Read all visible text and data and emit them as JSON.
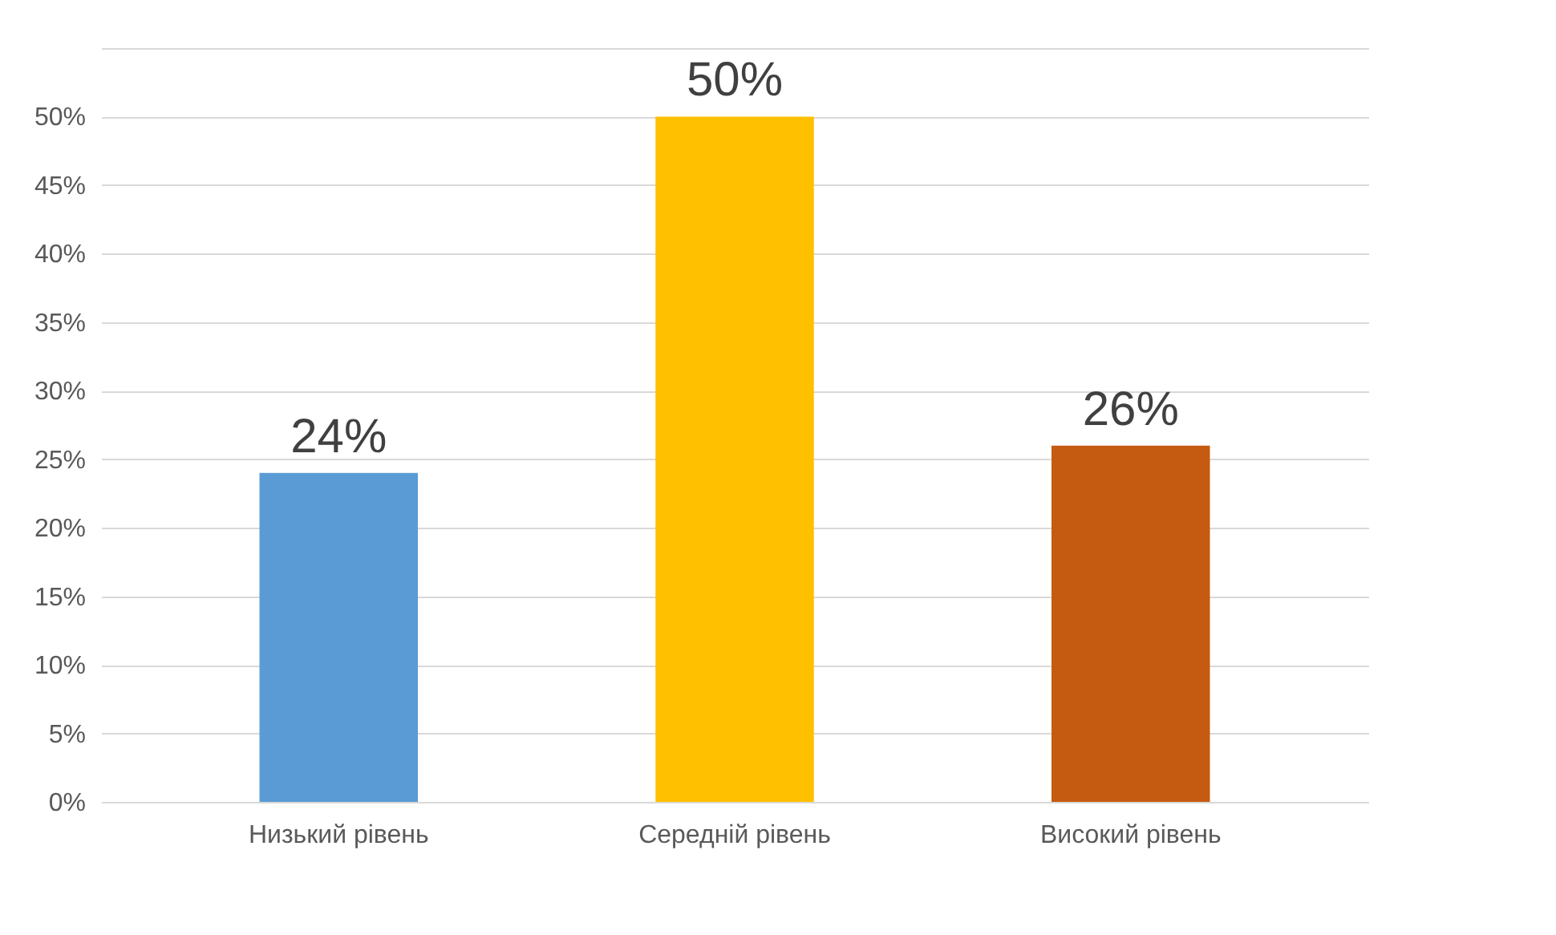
{
  "chart_data": {
    "type": "bar",
    "categories": [
      "Низький рівень",
      "Середній рівень",
      "Високий рівень"
    ],
    "values": [
      24,
      50,
      26
    ],
    "colors": [
      "#5b9bd5",
      "#ffc000",
      "#c55a11"
    ],
    "value_labels": [
      "24%",
      "50%",
      "26%"
    ],
    "ylim": [
      0,
      55
    ],
    "yticks": [
      {
        "value": 0,
        "label": "0%"
      },
      {
        "value": 5,
        "label": "5%"
      },
      {
        "value": 10,
        "label": "10%"
      },
      {
        "value": 15,
        "label": "15%"
      },
      {
        "value": 20,
        "label": "20%"
      },
      {
        "value": 25,
        "label": "25%"
      },
      {
        "value": 30,
        "label": "30%"
      },
      {
        "value": 35,
        "label": "35%"
      },
      {
        "value": 40,
        "label": "40%"
      },
      {
        "value": 45,
        "label": "45%"
      },
      {
        "value": 50,
        "label": "50%"
      },
      {
        "value": 55,
        "label": null
      }
    ],
    "grid": true
  }
}
